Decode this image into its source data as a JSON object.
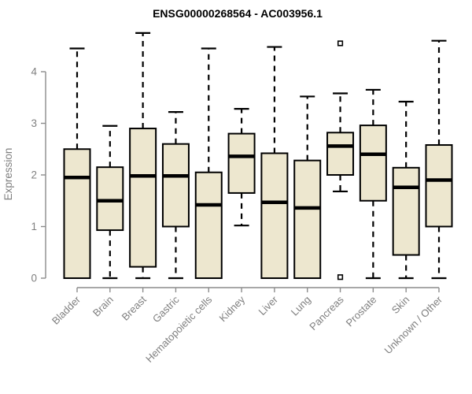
{
  "page": {
    "title": "ENSG00000268564 - AC003956.1"
  },
  "chart_data": {
    "type": "boxplot",
    "title": "ENSG00000268564 - AC003956.1",
    "xlabel": "",
    "ylabel": "Expression",
    "ylim": [
      0,
      4
    ],
    "yticks": [
      0,
      1,
      2,
      3,
      4
    ],
    "grid": false,
    "legend": "none",
    "whisker_line_style": "dashed",
    "categories": [
      "Bladder",
      "Brain",
      "Breast",
      "Gastric",
      "Hematopoietic cells",
      "Kidney",
      "Liver",
      "Lung",
      "Pancreas",
      "Prostate",
      "Skin",
      "Unknown / Other"
    ],
    "series": [
      {
        "name": "Bladder",
        "min": 0,
        "q1": 0,
        "median": 1.95,
        "q3": 2.5,
        "max": 4.45,
        "outliers": []
      },
      {
        "name": "Brain",
        "min": 0,
        "q1": 0.93,
        "median": 1.5,
        "q3": 2.15,
        "max": 2.95,
        "outliers": []
      },
      {
        "name": "Breast",
        "min": 0,
        "q1": 0.22,
        "median": 1.98,
        "q3": 2.9,
        "max": 4.75,
        "outliers": []
      },
      {
        "name": "Gastric",
        "min": 0,
        "q1": 1.0,
        "median": 1.98,
        "q3": 2.6,
        "max": 3.22,
        "outliers": []
      },
      {
        "name": "Hematopoietic cells",
        "min": 0,
        "q1": 0,
        "median": 1.42,
        "q3": 2.05,
        "max": 4.45,
        "outliers": []
      },
      {
        "name": "Kidney",
        "min": 1.02,
        "q1": 1.65,
        "median": 2.36,
        "q3": 2.8,
        "max": 3.28,
        "outliers": []
      },
      {
        "name": "Liver",
        "min": 0,
        "q1": 0,
        "median": 1.47,
        "q3": 2.42,
        "max": 4.48,
        "outliers": []
      },
      {
        "name": "Lung",
        "min": 0,
        "q1": 0,
        "median": 1.36,
        "q3": 2.28,
        "max": 3.52,
        "outliers": []
      },
      {
        "name": "Pancreas",
        "min": 1.68,
        "q1": 2.0,
        "median": 2.56,
        "q3": 2.82,
        "max": 3.58,
        "outliers": [
          4.55,
          0.02
        ]
      },
      {
        "name": "Prostate",
        "min": 0,
        "q1": 1.5,
        "median": 2.4,
        "q3": 2.96,
        "max": 3.65,
        "outliers": []
      },
      {
        "name": "Skin",
        "min": 0,
        "q1": 0.45,
        "median": 1.76,
        "q3": 2.14,
        "max": 3.42,
        "outliers": []
      },
      {
        "name": "Unknown / Other",
        "min": 0,
        "q1": 1.0,
        "median": 1.9,
        "q3": 2.58,
        "max": 4.6,
        "outliers": []
      }
    ],
    "colors": {
      "background": "#FFFFFF",
      "box_fill": "#EDE7CF",
      "box_border": "#000000",
      "median": "#000000",
      "whisker": "#000000",
      "outlier_fill": "#FFFFFF",
      "outlier_border": "#000000",
      "axis": "#8C8C8C",
      "tick_label": "#7F7F7F",
      "title": "#000000"
    }
  }
}
